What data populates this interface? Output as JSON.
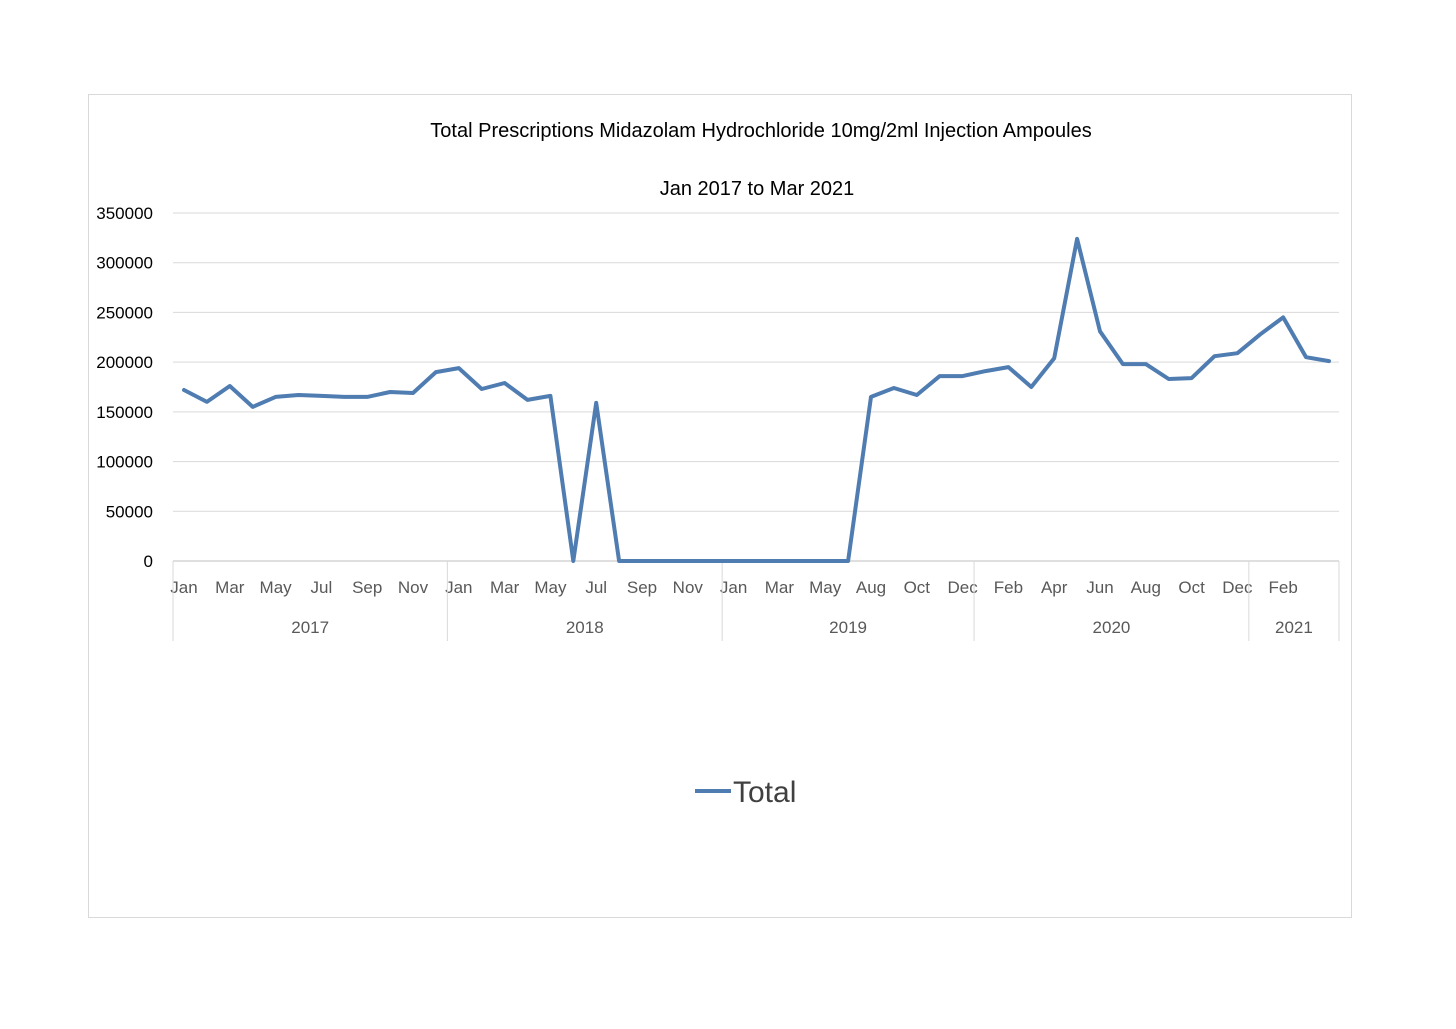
{
  "chart_data": {
    "type": "line",
    "title": "Total Prescriptions Midazolam Hydrochloride 10mg/2ml Injection Ampoules",
    "subtitle": "Jan 2017 to Mar 2021",
    "ylim": [
      0,
      350000
    ],
    "yticks": [
      0,
      50000,
      100000,
      150000,
      200000,
      250000,
      300000,
      350000
    ],
    "grid": true,
    "legend_position": "bottom",
    "line_color": "#4f7cb1",
    "x_month_labels": [
      "Jan",
      "Mar",
      "May",
      "Jul",
      "Sep",
      "Nov",
      "Jan",
      "Mar",
      "May",
      "Jul",
      "Sep",
      "Nov",
      "Jan",
      "Mar",
      "May",
      "Aug",
      "Oct",
      "Dec",
      "Feb",
      "Apr",
      "Jun",
      "Aug",
      "Oct",
      "Dec",
      "Feb"
    ],
    "x_year_labels": [
      "2017",
      "2018",
      "2019",
      "2020",
      "2021"
    ],
    "series": [
      {
        "name": "Total",
        "values": [
          172000,
          160000,
          176000,
          155000,
          165000,
          167000,
          166000,
          165000,
          165000,
          170000,
          169000,
          190000,
          194000,
          173000,
          179000,
          162000,
          166000,
          0,
          159000,
          0,
          0,
          0,
          0,
          0,
          0,
          0,
          0,
          0,
          0,
          0,
          165000,
          174000,
          167000,
          186000,
          186000,
          191000,
          195000,
          175000,
          204000,
          324000,
          231000,
          198000,
          198000,
          183000,
          184000,
          206000,
          209000,
          228000,
          245000,
          205000,
          201000
        ]
      }
    ]
  }
}
